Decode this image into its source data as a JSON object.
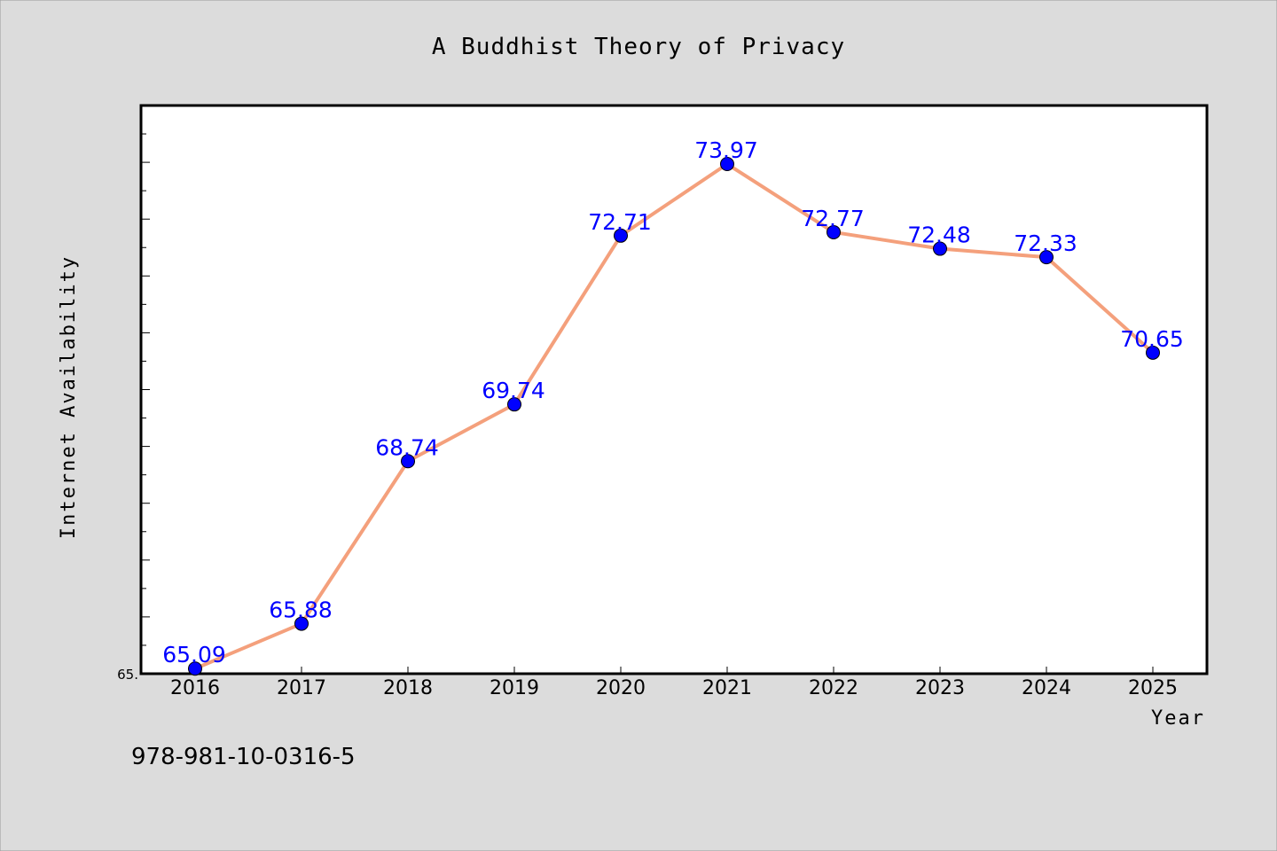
{
  "chart_data": {
    "type": "line",
    "title": "A Buddhist Theory of Privacy",
    "xlabel": "Year",
    "ylabel": "Internet Availability",
    "categories": [
      "2016",
      "2017",
      "2018",
      "2019",
      "2020",
      "2021",
      "2022",
      "2023",
      "2024",
      "2025"
    ],
    "series": [
      {
        "values": [
          65.09,
          65.88,
          68.74,
          69.74,
          72.71,
          73.97,
          72.77,
          72.48,
          72.33,
          70.65
        ],
        "labels": [
          "65.09",
          "65.88",
          "68.74",
          "69.74",
          "72.71",
          "73.97",
          "72.77",
          "72.48",
          "72.33",
          "70.65"
        ]
      }
    ],
    "ylim": [
      65.0,
      75.0
    ],
    "y_tick_labels": [
      "65."
    ],
    "grid": false,
    "colors": {
      "line": "#f4a07c",
      "marker": "#0000ff",
      "data_label": "#0000ff",
      "background": "#dcdcdc",
      "plot_background": "#ffffff"
    }
  },
  "footer": {
    "isbn": "978-981-10-0316-5"
  }
}
